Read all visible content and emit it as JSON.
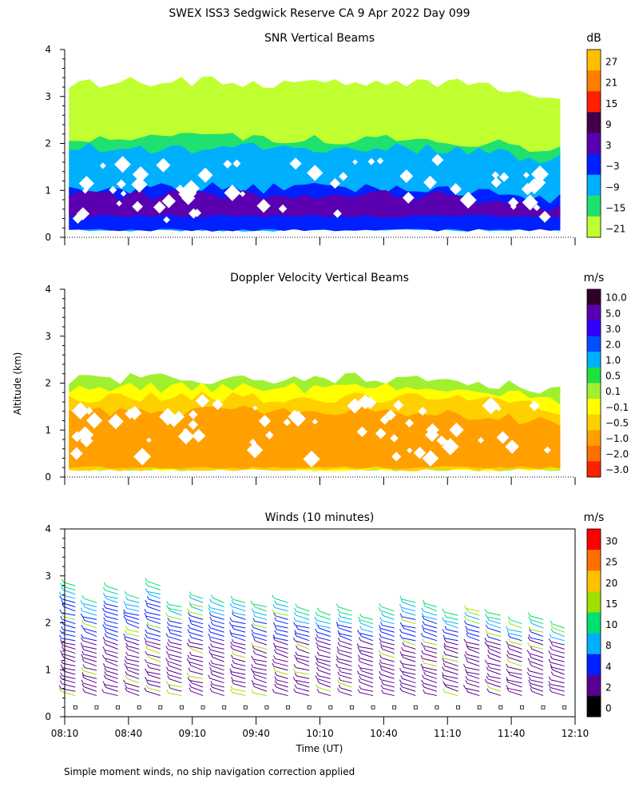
{
  "figure_title": "SWEX ISS3 Sedgwick Reserve CA    9 Apr 2022 Day 099",
  "y_axis_label": "Altitude (km)",
  "x_axis_label": "Time (UT)",
  "footnote": "Simple moment winds, no ship navigation correction applied",
  "chart_data": [
    {
      "type": "heatmap",
      "title": "SNR Vertical Beams",
      "ylabel": "Altitude (km)",
      "ylim": [
        0,
        4
      ],
      "yticks": [
        "0",
        "1",
        "2",
        "3",
        "4"
      ],
      "xlim_minutes": [
        0,
        240
      ],
      "x_range": [
        "08:10",
        "12:10"
      ],
      "colorbar": {
        "unit": "dB",
        "labels": [
          "27",
          "21",
          "15",
          "9",
          "3",
          "−3",
          "−9",
          "−15",
          "−21"
        ],
        "colors": [
          "#ffbf00",
          "#ff8000",
          "#ff2000",
          "#40004a",
          "#5a00b0",
          "#0020ff",
          "#00b0ff",
          "#20e070",
          "#c0ff30"
        ]
      },
      "layers": [
        {
          "label": "−21",
          "color": "#c0ff30",
          "bottom_km": 1.3,
          "top_km": 3.3
        },
        {
          "label": "−15",
          "color": "#20e070",
          "bottom_km": 1.0,
          "top_km": 2.1
        },
        {
          "label": "−9",
          "color": "#00b0ff",
          "bottom_km": 0.15,
          "top_km": 1.9
        },
        {
          "label": "−3",
          "color": "#0020ff",
          "bottom_km": 0.15,
          "top_km": 1.05
        },
        {
          "label": "3",
          "color": "#5a00b0",
          "bottom_km": 0.45,
          "top_km": 0.9
        }
      ]
    },
    {
      "type": "heatmap",
      "title": "Doppler Velocity Vertical Beams",
      "ylabel": "Altitude (km)",
      "ylim": [
        0,
        4
      ],
      "yticks": [
        "0",
        "1",
        "2",
        "3",
        "4"
      ],
      "xlim_minutes": [
        0,
        240
      ],
      "colorbar": {
        "unit": "m/s",
        "labels": [
          "10.0",
          "5.0",
          "3.0",
          "2.0",
          "1.0",
          "0.5",
          "0.1",
          "−0.1",
          "−0.5",
          "−1.0",
          "−2.0",
          "−3.0"
        ],
        "colors": [
          "#300028",
          "#5a00b0",
          "#3000ff",
          "#0050ff",
          "#00b0ff",
          "#20e040",
          "#a0f030",
          "#ffff00",
          "#ffd000",
          "#ffa000",
          "#ff7000",
          "#ff2000"
        ]
      },
      "layers": [
        {
          "label": "0.1",
          "color": "#a0f030",
          "bottom_km": 0.15,
          "top_km": 2.1
        },
        {
          "label": "−0.1",
          "color": "#ffff00",
          "bottom_km": 0.15,
          "top_km": 1.9
        },
        {
          "label": "−0.5",
          "color": "#ffd000",
          "bottom_km": 0.15,
          "top_km": 1.7
        },
        {
          "label": "−1.0",
          "color": "#ffa000",
          "bottom_km": 0.2,
          "top_km": 1.4
        }
      ]
    },
    {
      "type": "wind_barbs",
      "title": "Winds (10 minutes)",
      "ylabel": "Altitude (km)",
      "xlabel": "Time (UT)",
      "ylim": [
        0,
        4
      ],
      "yticks": [
        "0",
        "1",
        "2",
        "3",
        "4"
      ],
      "xlim_minutes": [
        0,
        240
      ],
      "xticks": [
        "08:10",
        "08:40",
        "09:10",
        "09:40",
        "10:10",
        "10:40",
        "11:10",
        "11:40",
        "12:10"
      ],
      "colorbar": {
        "unit": "m/s",
        "labels": [
          "30",
          "25",
          "20",
          "15",
          "10",
          "8",
          "4",
          "2",
          "0"
        ],
        "colors": [
          "#ff0000",
          "#ff7000",
          "#ffc000",
          "#a0e000",
          "#00e070",
          "#00b0ff",
          "#0020ff",
          "#5a0090",
          "#000000"
        ]
      },
      "profile_times_min": [
        5,
        15,
        25,
        35,
        45,
        55,
        65,
        75,
        85,
        95,
        105,
        115,
        125,
        135,
        145,
        155,
        165,
        175,
        185,
        195,
        205,
        215,
        225,
        235
      ],
      "profile_top_km": [
        2.8,
        2.5,
        2.7,
        2.6,
        2.8,
        2.4,
        2.6,
        2.5,
        2.5,
        2.4,
        2.5,
        2.3,
        2.2,
        2.3,
        2.1,
        2.3,
        2.5,
        2.4,
        2.2,
        2.3,
        2.2,
        2.0,
        2.1,
        1.9
      ]
    }
  ]
}
